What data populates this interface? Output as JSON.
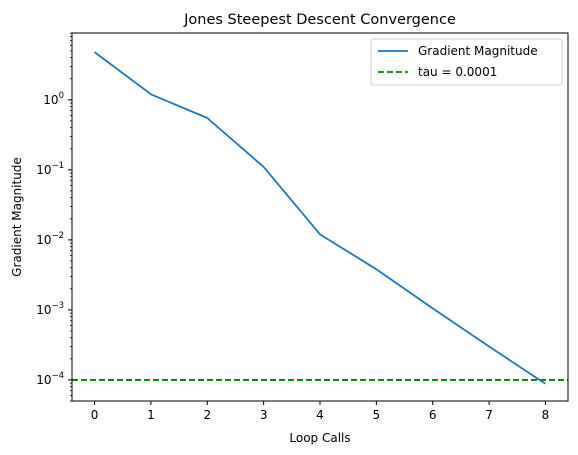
{
  "chart_data": {
    "type": "line",
    "title": "Jones Steepest Descent Convergence",
    "xlabel": "Loop Calls",
    "ylabel": "Gradient Magnitude",
    "xlim": [
      -0.4,
      8.4
    ],
    "ylim": [
      5e-05,
      9.0
    ],
    "yscale": "log",
    "x_ticks": [
      0,
      1,
      2,
      3,
      4,
      5,
      6,
      7,
      8
    ],
    "y_ticks": [
      {
        "value": 0.0001,
        "base": "10",
        "exp": "−4"
      },
      {
        "value": 0.001,
        "base": "10",
        "exp": "−3"
      },
      {
        "value": 0.01,
        "base": "10",
        "exp": "−2"
      },
      {
        "value": 0.1,
        "base": "10",
        "exp": "−1"
      },
      {
        "value": 1,
        "base": "10",
        "exp": "0"
      }
    ],
    "series": [
      {
        "name": "Gradient Magnitude",
        "style": "solid",
        "color": "#1f77b4",
        "x": [
          0,
          1,
          2,
          3,
          4,
          5,
          6,
          7,
          8
        ],
        "y": [
          4.8,
          1.2,
          0.55,
          0.11,
          0.012,
          0.0038,
          0.00105,
          0.0003,
          8.8e-05
        ]
      }
    ],
    "reference_lines": [
      {
        "name": "tau = 0.0001",
        "y": 0.0001,
        "style": "dashed",
        "color": "#008000"
      }
    ],
    "legend": {
      "placement": "upper-right",
      "entries": [
        "Gradient Magnitude",
        "tau = 0.0001"
      ]
    },
    "grid": false
  }
}
